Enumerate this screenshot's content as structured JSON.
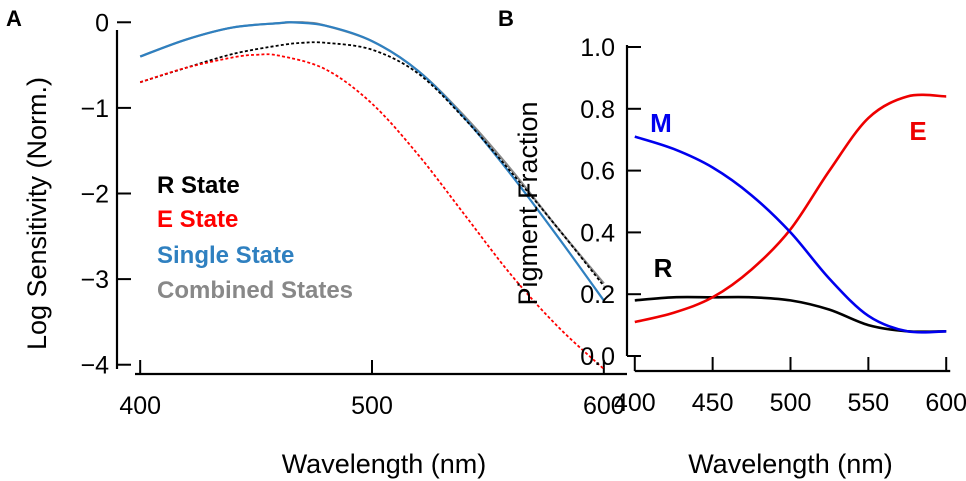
{
  "chart_data": [
    {
      "panel": "A",
      "type": "line",
      "xlabel": "Wavelength (nm)",
      "ylabel": "Log Sensitivity (Norm.)",
      "xlim": [
        390,
        610
      ],
      "ylim": [
        -4.05,
        0.05
      ],
      "xticks": [
        400,
        500,
        600
      ],
      "yticks": [
        0,
        -1,
        -2,
        -3,
        -4
      ],
      "legend_position": "left-center",
      "series": [
        {
          "name": "R State",
          "color": "#000000",
          "dash": "dotted",
          "x": [
            400,
            420,
            440,
            460,
            470,
            480,
            500,
            520,
            540,
            560,
            580,
            600
          ],
          "y": [
            -0.7,
            -0.53,
            -0.37,
            -0.27,
            -0.24,
            -0.24,
            -0.32,
            -0.6,
            -1.13,
            -1.75,
            -2.4,
            -3.08
          ]
        },
        {
          "name": "E State",
          "color": "#ff0000",
          "dash": "dotted",
          "x": [
            400,
            420,
            440,
            450,
            460,
            480,
            500,
            520,
            540,
            560,
            580,
            600
          ],
          "y": [
            -0.7,
            -0.53,
            -0.41,
            -0.38,
            -0.39,
            -0.55,
            -0.95,
            -1.55,
            -2.25,
            -2.95,
            -3.55,
            -4.05
          ]
        },
        {
          "name": "Single State",
          "color": "#2f80c0",
          "dash": "solid",
          "x": [
            400,
            420,
            440,
            460,
            465,
            480,
            500,
            520,
            540,
            560,
            580,
            600
          ],
          "y": [
            -0.4,
            -0.2,
            -0.06,
            -0.01,
            0.0,
            -0.04,
            -0.22,
            -0.57,
            -1.12,
            -1.78,
            -2.5,
            -3.25
          ]
        },
        {
          "name": "Combined States",
          "color": "#888888",
          "dash": "solid",
          "x": [
            400,
            420,
            440,
            460,
            470,
            480,
            500,
            520,
            540,
            560,
            580,
            600
          ],
          "y": [
            -0.4,
            -0.2,
            -0.06,
            -0.01,
            0.0,
            -0.04,
            -0.22,
            -0.57,
            -1.1,
            -1.72,
            -2.4,
            -3.05
          ]
        }
      ]
    },
    {
      "panel": "B",
      "type": "line",
      "xlabel": "Wavelength (nm)",
      "ylabel": "Pigment Fraction",
      "xlim": [
        395,
        605
      ],
      "ylim": [
        0.0,
        1.0
      ],
      "xticks": [
        400,
        450,
        500,
        550,
        600
      ],
      "yticks": [
        0.0,
        0.2,
        0.4,
        0.6,
        0.8,
        1.0
      ],
      "series": [
        {
          "name": "M",
          "color": "#0000ee",
          "dash": "solid",
          "x": [
            400,
            425,
            450,
            475,
            500,
            525,
            550,
            575,
            600
          ],
          "y": [
            0.71,
            0.67,
            0.61,
            0.52,
            0.4,
            0.25,
            0.13,
            0.08,
            0.08
          ]
        },
        {
          "name": "E",
          "color": "#ee0000",
          "dash": "solid",
          "x": [
            400,
            425,
            450,
            475,
            500,
            525,
            550,
            575,
            600
          ],
          "y": [
            0.11,
            0.14,
            0.19,
            0.28,
            0.41,
            0.6,
            0.77,
            0.84,
            0.84
          ]
        },
        {
          "name": "R",
          "color": "#000000",
          "dash": "solid",
          "x": [
            400,
            425,
            450,
            475,
            500,
            525,
            550,
            575,
            600
          ],
          "y": [
            0.18,
            0.19,
            0.19,
            0.19,
            0.18,
            0.15,
            0.1,
            0.08,
            0.08
          ]
        }
      ]
    }
  ]
}
